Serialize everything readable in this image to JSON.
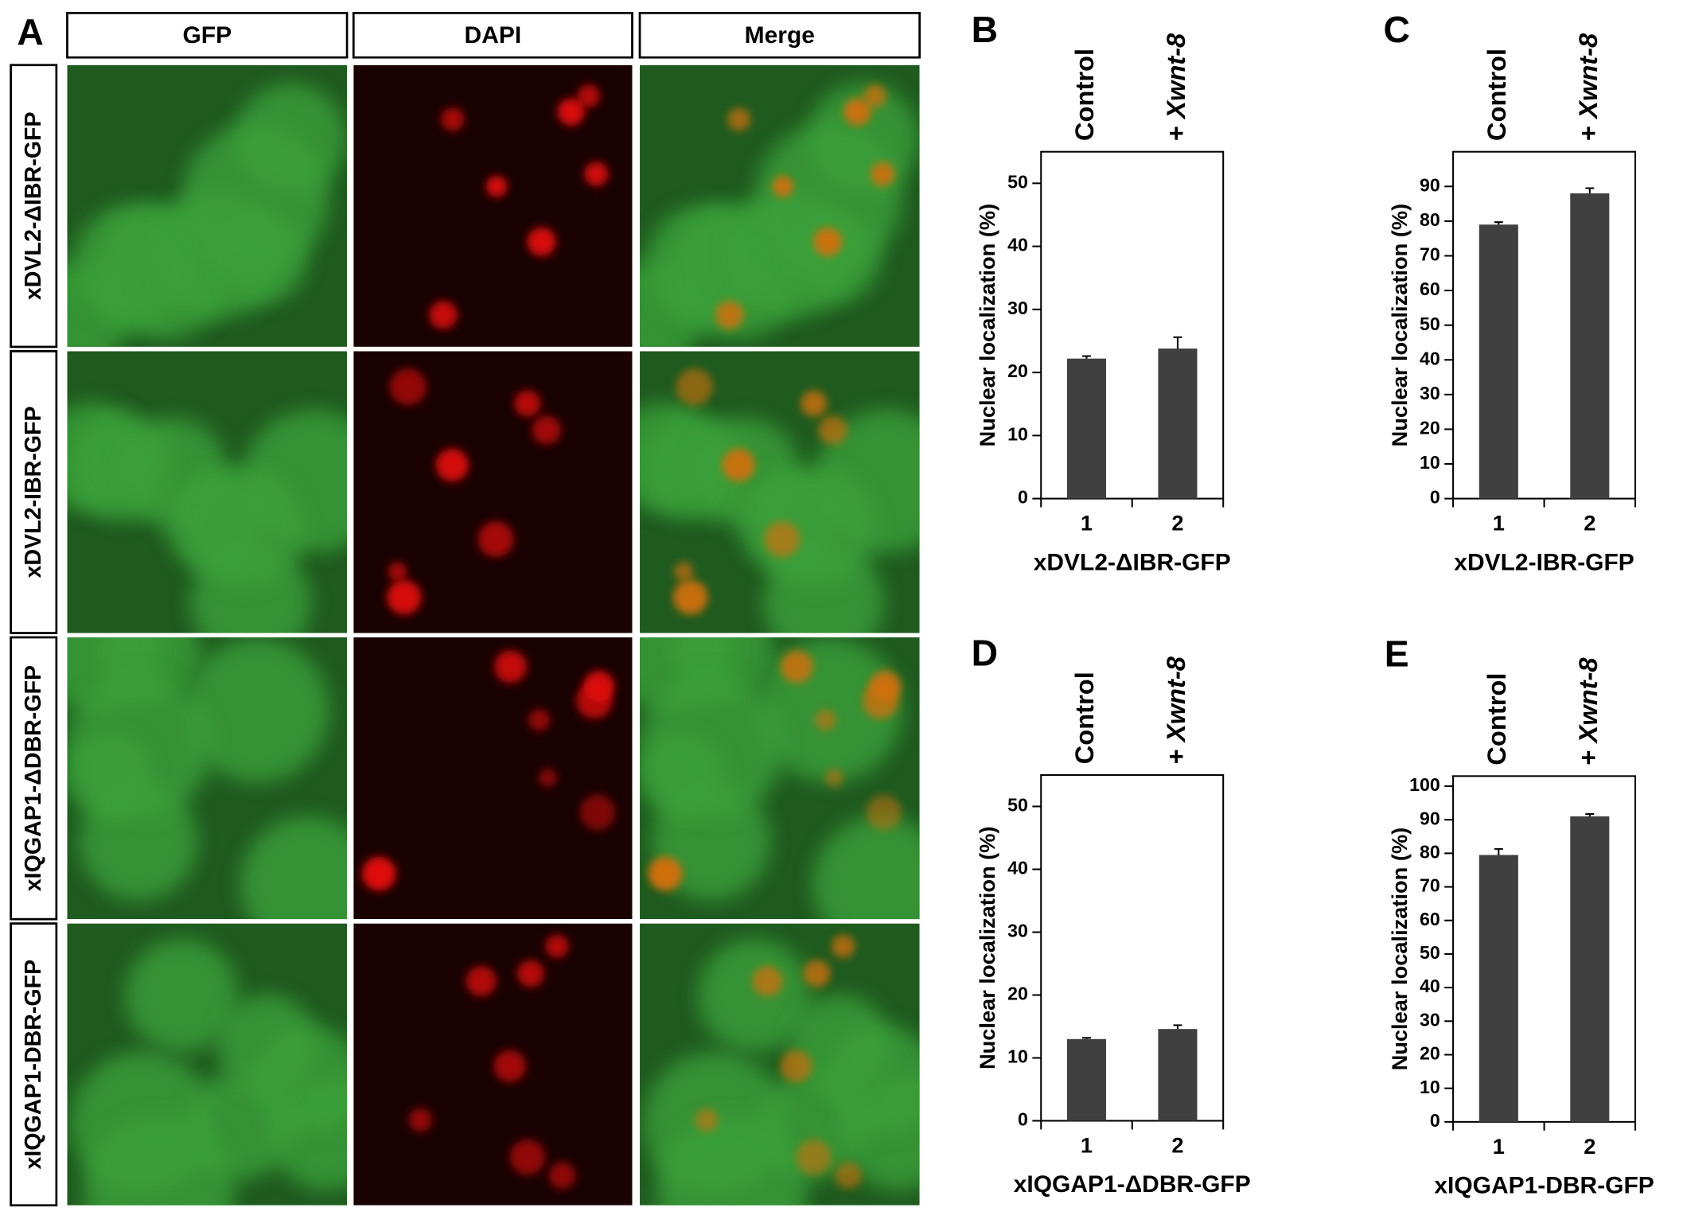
{
  "panel_a": {
    "label": "A",
    "columns": [
      "GFP",
      "DAPI",
      "Merge"
    ],
    "rows": [
      "xDVL2-ΔIBR-GFP",
      "xDVL2-IBR-GFP",
      "xIQGAP1-ΔDBR-GFP",
      "xIQGAP1-DBR-GFP"
    ]
  },
  "chart_data": [
    {
      "type": "bar",
      "panel": "B",
      "annotations": [
        "Control",
        "+",
        "Xwnt-8"
      ],
      "categories": [
        "1",
        "2"
      ],
      "values": [
        22.2,
        23.8
      ],
      "errors": [
        0.4,
        1.8
      ],
      "color": "#404040",
      "ylabel": "Nuclear localization (%)",
      "xlabel": "xDVL2-ΔIBR-GFP",
      "ylim": [
        0,
        55
      ],
      "yticks": [
        0,
        10,
        20,
        30,
        40,
        50
      ]
    },
    {
      "type": "bar",
      "panel": "C",
      "annotations": [
        "Control",
        "+",
        "Xwnt-8"
      ],
      "categories": [
        "1",
        "2"
      ],
      "values": [
        79,
        88
      ],
      "errors": [
        0.7,
        1.5
      ],
      "color": "#404040",
      "ylabel": "Nuclear localization (%)",
      "xlabel": "xDVL2-IBR-GFP",
      "ylim": [
        0,
        100
      ],
      "yticks": [
        0,
        10,
        20,
        30,
        40,
        50,
        60,
        70,
        80,
        90
      ]
    },
    {
      "type": "bar",
      "panel": "D",
      "annotations": [
        "Control",
        "+",
        "Xwnt-8"
      ],
      "categories": [
        "1",
        "2"
      ],
      "values": [
        13,
        14.6
      ],
      "errors": [
        0.2,
        0.6
      ],
      "color": "#404040",
      "ylabel": "Nuclear localization (%)",
      "xlabel": "xIQGAP1-ΔDBR-GFP",
      "ylim": [
        0,
        55
      ],
      "yticks": [
        0,
        10,
        20,
        30,
        40,
        50
      ]
    },
    {
      "type": "bar",
      "panel": "E",
      "annotations": [
        "Control",
        "+",
        "Xwnt-8"
      ],
      "categories": [
        "1",
        "2"
      ],
      "values": [
        79.5,
        91
      ],
      "errors": [
        1.8,
        0.7
      ],
      "color": "#404040",
      "ylabel": "Nuclear localization (%)",
      "xlabel": "xIQGAP1-DBR-GFP",
      "ylim": [
        0,
        103
      ],
      "yticks": [
        0,
        10,
        20,
        30,
        40,
        50,
        60,
        70,
        80,
        90,
        100
      ]
    }
  ]
}
